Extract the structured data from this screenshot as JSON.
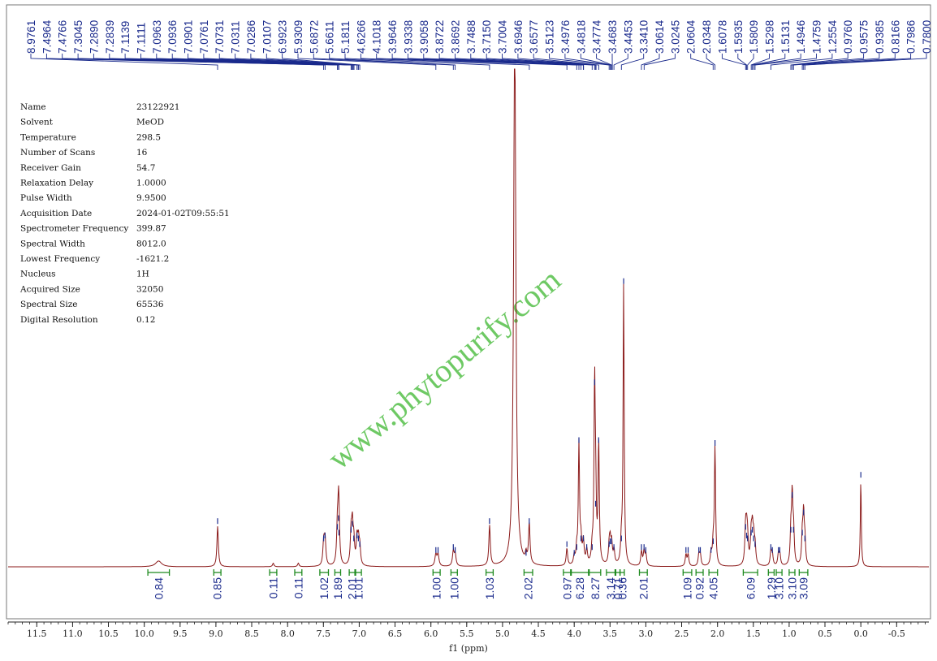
{
  "chart_data": {
    "type": "line",
    "title": "",
    "xlabel": "f1 (ppm)",
    "ylabel": "",
    "xlim": [
      11.9,
      -0.95
    ],
    "x_reversed": true,
    "x_ticks": [
      "11.5",
      "11.0",
      "10.5",
      "10.0",
      "9.5",
      "9.0",
      "8.5",
      "8.0",
      "7.5",
      "7.0",
      "6.5",
      "6.0",
      "5.5",
      "5.0",
      "4.5",
      "4.0",
      "3.5",
      "3.0",
      "2.5",
      "2.0",
      "1.5",
      "1.0",
      "0.5",
      "0.0",
      "-0.5"
    ],
    "x_tick_values": [
      11.5,
      11.0,
      10.5,
      10.0,
      9.5,
      9.0,
      8.5,
      8.0,
      7.5,
      7.0,
      6.5,
      6.0,
      5.5,
      5.0,
      4.5,
      4.0,
      3.5,
      3.0,
      2.5,
      2.0,
      1.5,
      1.0,
      0.5,
      0.0,
      -0.5
    ],
    "peak_labels": [
      "8.9761",
      "7.4964",
      "7.4766",
      "7.3045",
      "7.2890",
      "7.2839",
      "7.1139",
      "7.1111",
      "7.0963",
      "7.0936",
      "7.0901",
      "7.0761",
      "7.0731",
      "7.0311",
      "7.0286",
      "7.0107",
      "6.9923",
      "5.9309",
      "5.6872",
      "5.6611",
      "5.1811",
      "4.6266",
      "4.1018",
      "3.9646",
      "3.9338",
      "3.9058",
      "3.8722",
      "3.8692",
      "3.7488",
      "3.7150",
      "3.7004",
      "3.6946",
      "3.6577",
      "3.5123",
      "3.4976",
      "3.4818",
      "3.4774",
      "3.4683",
      "3.4453",
      "3.3410",
      "3.0614",
      "3.0245",
      "2.0604",
      "2.0348",
      "1.6078",
      "1.5935",
      "1.5809",
      "1.5298",
      "1.5131",
      "1.4946",
      "1.4759",
      "1.2554",
      "0.9760",
      "0.9575",
      "0.9385",
      "0.8166",
      "0.7986",
      "0.7800"
    ],
    "peaks": [
      {
        "x": 9.8,
        "h": 0.02,
        "w": 0.05
      },
      {
        "x": 8.976,
        "h": 0.14,
        "w": 0.012
      },
      {
        "x": 8.2,
        "h": 0.012,
        "w": 0.012
      },
      {
        "x": 7.85,
        "h": 0.012,
        "w": 0.012
      },
      {
        "x": 7.496,
        "h": 0.08,
        "w": 0.013
      },
      {
        "x": 7.477,
        "h": 0.09,
        "w": 0.013
      },
      {
        "x": 7.305,
        "h": 0.12,
        "w": 0.012
      },
      {
        "x": 7.289,
        "h": 0.15,
        "w": 0.012
      },
      {
        "x": 7.284,
        "h": 0.1,
        "w": 0.012
      },
      {
        "x": 7.114,
        "h": 0.11,
        "w": 0.012
      },
      {
        "x": 7.096,
        "h": 0.13,
        "w": 0.012
      },
      {
        "x": 7.076,
        "h": 0.08,
        "w": 0.012
      },
      {
        "x": 7.031,
        "h": 0.09,
        "w": 0.012
      },
      {
        "x": 7.011,
        "h": 0.08,
        "w": 0.012
      },
      {
        "x": 6.992,
        "h": 0.06,
        "w": 0.012
      },
      {
        "x": 5.931,
        "h": 0.04,
        "w": 0.015
      },
      {
        "x": 5.9,
        "h": 0.04,
        "w": 0.015
      },
      {
        "x": 5.687,
        "h": 0.05,
        "w": 0.014
      },
      {
        "x": 5.661,
        "h": 0.04,
        "w": 0.014
      },
      {
        "x": 5.181,
        "h": 0.14,
        "w": 0.012
      },
      {
        "x": 4.83,
        "h": 1.9,
        "w": 0.018
      },
      {
        "x": 4.672,
        "h": 0.03,
        "w": 0.012
      },
      {
        "x": 4.627,
        "h": 0.14,
        "w": 0.012
      },
      {
        "x": 4.102,
        "h": 0.06,
        "w": 0.012
      },
      {
        "x": 4.0,
        "h": 0.03,
        "w": 0.012
      },
      {
        "x": 3.965,
        "h": 0.05,
        "w": 0.012
      },
      {
        "x": 3.934,
        "h": 0.42,
        "w": 0.01
      },
      {
        "x": 3.906,
        "h": 0.08,
        "w": 0.012
      },
      {
        "x": 3.872,
        "h": 0.08,
        "w": 0.012
      },
      {
        "x": 3.825,
        "h": 0.05,
        "w": 0.012
      },
      {
        "x": 3.749,
        "h": 0.05,
        "w": 0.012
      },
      {
        "x": 3.715,
        "h": 0.62,
        "w": 0.01
      },
      {
        "x": 3.7,
        "h": 0.2,
        "w": 0.01
      },
      {
        "x": 3.658,
        "h": 0.42,
        "w": 0.01
      },
      {
        "x": 3.512,
        "h": 0.06,
        "w": 0.012
      },
      {
        "x": 3.498,
        "h": 0.07,
        "w": 0.012
      },
      {
        "x": 3.478,
        "h": 0.07,
        "w": 0.012
      },
      {
        "x": 3.445,
        "h": 0.05,
        "w": 0.012
      },
      {
        "x": 3.341,
        "h": 0.08,
        "w": 0.012
      },
      {
        "x": 3.31,
        "h": 0.97,
        "w": 0.009
      },
      {
        "x": 3.061,
        "h": 0.05,
        "w": 0.012
      },
      {
        "x": 3.025,
        "h": 0.05,
        "w": 0.012
      },
      {
        "x": 3.0,
        "h": 0.04,
        "w": 0.012
      },
      {
        "x": 2.44,
        "h": 0.04,
        "w": 0.012
      },
      {
        "x": 2.41,
        "h": 0.04,
        "w": 0.012
      },
      {
        "x": 2.26,
        "h": 0.04,
        "w": 0.012
      },
      {
        "x": 2.24,
        "h": 0.04,
        "w": 0.012
      },
      {
        "x": 2.09,
        "h": 0.04,
        "w": 0.012
      },
      {
        "x": 2.06,
        "h": 0.07,
        "w": 0.012
      },
      {
        "x": 2.035,
        "h": 0.41,
        "w": 0.01
      },
      {
        "x": 1.608,
        "h": 0.12,
        "w": 0.012
      },
      {
        "x": 1.594,
        "h": 0.09,
        "w": 0.012
      },
      {
        "x": 1.581,
        "h": 0.08,
        "w": 0.012
      },
      {
        "x": 1.53,
        "h": 0.1,
        "w": 0.012
      },
      {
        "x": 1.513,
        "h": 0.11,
        "w": 0.012
      },
      {
        "x": 1.495,
        "h": 0.08,
        "w": 0.012
      },
      {
        "x": 1.476,
        "h": 0.06,
        "w": 0.012
      },
      {
        "x": 1.255,
        "h": 0.05,
        "w": 0.012
      },
      {
        "x": 1.235,
        "h": 0.04,
        "w": 0.012
      },
      {
        "x": 1.15,
        "h": 0.04,
        "w": 0.012
      },
      {
        "x": 1.13,
        "h": 0.04,
        "w": 0.012
      },
      {
        "x": 0.976,
        "h": 0.11,
        "w": 0.011
      },
      {
        "x": 0.9575,
        "h": 0.23,
        "w": 0.011
      },
      {
        "x": 0.9385,
        "h": 0.11,
        "w": 0.011
      },
      {
        "x": 0.8166,
        "h": 0.1,
        "w": 0.011
      },
      {
        "x": 0.7986,
        "h": 0.17,
        "w": 0.011
      },
      {
        "x": 0.78,
        "h": 0.08,
        "w": 0.011
      },
      {
        "x": 0.0,
        "h": 0.3,
        "w": 0.008
      }
    ],
    "integrals": [
      {
        "from": 9.95,
        "to": 9.65,
        "value": "0.84"
      },
      {
        "from": 9.03,
        "to": 8.93,
        "value": "0.85"
      },
      {
        "from": 8.25,
        "to": 8.15,
        "value": "0.11"
      },
      {
        "from": 7.9,
        "to": 7.8,
        "value": "0.11"
      },
      {
        "from": 7.55,
        "to": 7.43,
        "value": "1.02"
      },
      {
        "from": 7.34,
        "to": 7.26,
        "value": "1.89"
      },
      {
        "from": 7.14,
        "to": 7.06,
        "value": "2.01"
      },
      {
        "from": 7.05,
        "to": 6.97,
        "value": "1.01"
      },
      {
        "from": 5.97,
        "to": 5.87,
        "value": "1.00"
      },
      {
        "from": 5.72,
        "to": 5.63,
        "value": "1.00"
      },
      {
        "from": 5.23,
        "to": 5.13,
        "value": "1.03"
      },
      {
        "from": 4.7,
        "to": 4.58,
        "value": "2.02"
      },
      {
        "from": 4.15,
        "to": 4.05,
        "value": "0.97"
      },
      {
        "from": 4.04,
        "to": 3.8,
        "value": "6.28"
      },
      {
        "from": 3.79,
        "to": 3.63,
        "value": "8.27"
      },
      {
        "from": 3.55,
        "to": 3.43,
        "value": "3.14"
      },
      {
        "from": 3.42,
        "to": 3.36,
        "value": "0.71"
      },
      {
        "from": 3.36,
        "to": 3.3,
        "value": "0.36"
      },
      {
        "from": 3.09,
        "to": 2.98,
        "value": "2.01"
      },
      {
        "from": 2.48,
        "to": 2.36,
        "value": "1.09"
      },
      {
        "from": 2.3,
        "to": 2.2,
        "value": "0.92"
      },
      {
        "from": 2.12,
        "to": 2.0,
        "value": "4.05"
      },
      {
        "from": 1.64,
        "to": 1.44,
        "value": "6.09"
      },
      {
        "from": 1.29,
        "to": 1.21,
        "value": "1.29"
      },
      {
        "from": 1.18,
        "to": 1.1,
        "value": "3.10"
      },
      {
        "from": 1.0,
        "to": 0.92,
        "value": "3.10"
      },
      {
        "from": 0.86,
        "to": 0.74,
        "value": "3.09"
      }
    ]
  },
  "parameters": [
    {
      "name": "Name",
      "value": "23122921"
    },
    {
      "name": "Solvent",
      "value": "MeOD"
    },
    {
      "name": "Temperature",
      "value": "298.5"
    },
    {
      "name": "Number of Scans",
      "value": "16"
    },
    {
      "name": "Receiver Gain",
      "value": "54.7"
    },
    {
      "name": "Relaxation Delay",
      "value": "1.0000"
    },
    {
      "name": "Pulse Width",
      "value": "9.9500"
    },
    {
      "name": "Acquisition Date",
      "value": "2024-01-02T09:55:51"
    },
    {
      "name": "Spectrometer Frequency",
      "value": "399.87"
    },
    {
      "name": "Spectral Width",
      "value": "8012.0"
    },
    {
      "name": "Lowest Frequency",
      "value": "-1621.2"
    },
    {
      "name": "Nucleus",
      "value": "1H"
    },
    {
      "name": "Acquired Size",
      "value": "32050"
    },
    {
      "name": "Spectral Size",
      "value": "65536"
    },
    {
      "name": "Digital Resolution",
      "value": "0.12"
    }
  ],
  "watermark": "www.phytopurify.com",
  "colors": {
    "spectrum": "#8b1a1a",
    "labels": "#1a2a8c",
    "integral": "#1f8a1f",
    "watermark": "#55c04a",
    "frame": "#555555"
  }
}
